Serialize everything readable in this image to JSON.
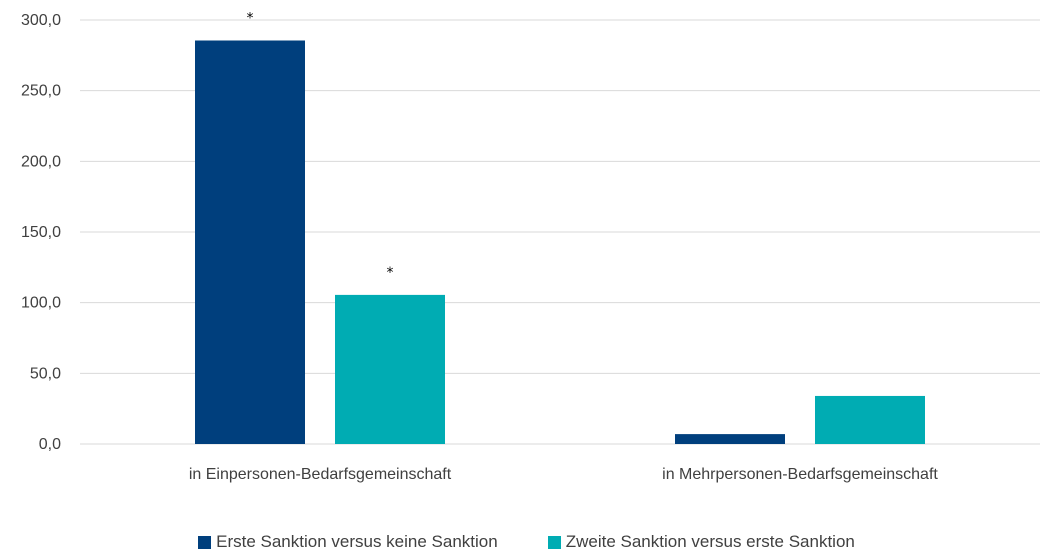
{
  "chart_data": {
    "type": "bar",
    "categories": [
      "in Einpersonen-Bedarfsgemeinschaft",
      "in Mehrpersonen-Bedarfsgemeinschaft"
    ],
    "series": [
      {
        "name": "Erste Sanktion versus keine Sanktion",
        "values": [
          285.5,
          7.0
        ],
        "color": "#003f7d",
        "significant": [
          true,
          false
        ]
      },
      {
        "name": "Zweite Sanktion versus erste Sanktion",
        "values": [
          105.5,
          34.0
        ],
        "color": "#00acb3",
        "significant": [
          true,
          false
        ]
      }
    ],
    "y_ticks": [
      "0,0",
      "50,0",
      "100,0",
      "150,0",
      "200,0",
      "250,0",
      "300,0"
    ],
    "ylim": [
      0,
      300
    ],
    "significance_marker": "*",
    "grid": true,
    "legend_position": "bottom"
  }
}
